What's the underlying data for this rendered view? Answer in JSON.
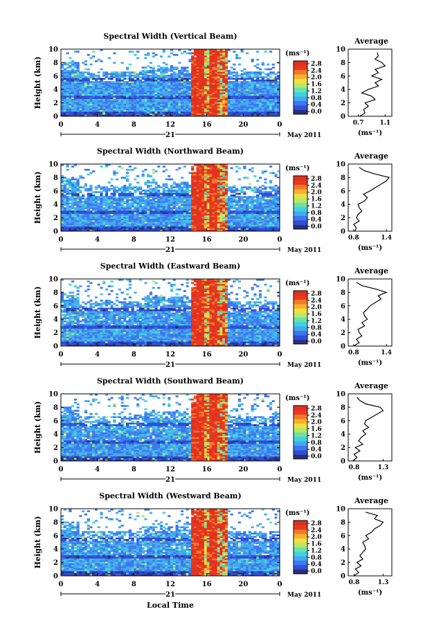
{
  "colorbar_unit": "(ms⁻¹)",
  "colorbar_ticks": [
    "2.8",
    "2.4",
    "2.0",
    "1.6",
    "1.2",
    "0.8",
    "0.4",
    "0.0"
  ],
  "colormap": [
    "#2b2f7a",
    "#2f4fd8",
    "#3f78ee",
    "#45a8f0",
    "#3fd3e0",
    "#6fe0a8",
    "#b8e86a",
    "#f0e040",
    "#f8b030",
    "#f07a28",
    "#e83a22",
    "#e03020"
  ],
  "average_title": "Average",
  "average_xlabel": "(ms⁻¹)",
  "date_label": "May 2011",
  "day_label": "21",
  "xlabel_bottom": "Local Time",
  "chart_data": [
    {
      "type": "heatmap",
      "title": "Spectral Width (Vertical Beam)",
      "ylabel": "Height (km)",
      "x_ticks": [
        "0",
        "4",
        "8",
        "12",
        "16",
        "20",
        "0"
      ],
      "y_ticks": [
        "0",
        "2",
        "4",
        "6",
        "8",
        "10"
      ],
      "xlim": [
        0,
        24
      ],
      "ylim": [
        0,
        10
      ],
      "colorbar_range": [
        0.0,
        2.8
      ],
      "average_profile": {
        "xticks": [
          "0.7",
          "1.1"
        ],
        "xlim": [
          0.55,
          1.2
        ],
        "height": [
          0,
          0.5,
          1,
          1.5,
          2,
          2.5,
          3,
          3.5,
          4,
          4.5,
          5,
          5.5,
          6,
          6.5,
          7,
          7.5,
          8,
          8.5,
          9,
          9.5
        ],
        "value": [
          0.72,
          0.8,
          0.78,
          0.85,
          0.8,
          0.95,
          0.9,
          0.75,
          0.85,
          1.0,
          0.95,
          1.05,
          0.9,
          1.0,
          0.95,
          1.1,
          1.05,
          0.95,
          1.0,
          0.98
        ]
      }
    },
    {
      "type": "heatmap",
      "title": "Spectral Width (Northward Beam)",
      "ylabel": "Height (km)",
      "x_ticks": [
        "0",
        "4",
        "8",
        "12",
        "16",
        "20",
        "0"
      ],
      "y_ticks": [
        "0",
        "2",
        "4",
        "6",
        "8",
        "10"
      ],
      "xlim": [
        0,
        24
      ],
      "ylim": [
        0,
        10
      ],
      "colorbar_range": [
        0.0,
        2.8
      ],
      "average_profile": {
        "xticks": [
          "0.8",
          "1.4"
        ],
        "xlim": [
          0.7,
          1.5
        ],
        "height": [
          0,
          0.5,
          1,
          1.5,
          2,
          2.5,
          3,
          3.5,
          4,
          4.5,
          5,
          5.5,
          6,
          6.5,
          7,
          7.5,
          8,
          8.5,
          9,
          9.5
        ],
        "value": [
          0.82,
          0.85,
          0.8,
          0.9,
          0.85,
          0.88,
          0.95,
          0.9,
          0.88,
          1.0,
          1.05,
          0.98,
          1.1,
          1.2,
          1.3,
          1.4,
          1.45,
          1.2,
          1.0,
          0.9
        ]
      }
    },
    {
      "type": "heatmap",
      "title": "Spectral Width (Eastward Beam)",
      "ylabel": "Height (km)",
      "x_ticks": [
        "0",
        "4",
        "8",
        "12",
        "16",
        "20",
        "0"
      ],
      "y_ticks": [
        "0",
        "2",
        "4",
        "6",
        "8",
        "10"
      ],
      "xlim": [
        0,
        24
      ],
      "ylim": [
        0,
        10
      ],
      "colorbar_range": [
        0.0,
        2.8
      ],
      "average_profile": {
        "xticks": [
          "0.8",
          "1.4"
        ],
        "xlim": [
          0.7,
          1.5
        ],
        "height": [
          0,
          0.5,
          1,
          1.5,
          2,
          2.5,
          3,
          3.5,
          4,
          4.5,
          5,
          5.5,
          6,
          6.5,
          7,
          7.5,
          8,
          8.5,
          9,
          9.5
        ],
        "value": [
          0.8,
          0.9,
          0.85,
          0.95,
          0.9,
          0.88,
          1.0,
          0.95,
          1.05,
          1.0,
          0.98,
          1.05,
          1.1,
          1.2,
          1.3,
          1.25,
          1.4,
          1.2,
          0.95,
          0.85
        ]
      }
    },
    {
      "type": "heatmap",
      "title": "Spectral Width (Southward Beam)",
      "ylabel": "Height (km)",
      "x_ticks": [
        "0",
        "4",
        "8",
        "12",
        "16",
        "20",
        "0"
      ],
      "y_ticks": [
        "0",
        "2",
        "4",
        "6",
        "8",
        "10"
      ],
      "xlim": [
        0,
        24
      ],
      "ylim": [
        0,
        10
      ],
      "colorbar_range": [
        0.0,
        2.8
      ],
      "average_profile": {
        "xticks": [
          "0.8",
          "1.3"
        ],
        "xlim": [
          0.7,
          1.45
        ],
        "height": [
          0,
          0.5,
          1,
          1.5,
          2,
          2.5,
          3,
          3.5,
          4,
          4.5,
          5,
          5.5,
          6,
          6.5,
          7,
          7.5,
          8,
          8.5,
          9,
          9.5
        ],
        "value": [
          0.78,
          0.85,
          0.8,
          0.9,
          0.82,
          0.95,
          0.88,
          0.92,
          1.0,
          0.95,
          1.05,
          0.98,
          1.0,
          1.1,
          1.2,
          1.3,
          1.25,
          1.0,
          0.9,
          0.85
        ]
      }
    },
    {
      "type": "heatmap",
      "title": "Spectral Width (Westward Beam)",
      "ylabel": "Height (km)",
      "x_ticks": [
        "0",
        "4",
        "8",
        "12",
        "16",
        "20",
        "0"
      ],
      "y_ticks": [
        "0",
        "2",
        "4",
        "6",
        "8",
        "10"
      ],
      "xlim": [
        0,
        24
      ],
      "ylim": [
        0,
        10
      ],
      "colorbar_range": [
        0.0,
        2.8
      ],
      "average_profile": {
        "xticks": [
          "0.8",
          "1.3"
        ],
        "xlim": [
          0.7,
          1.45
        ],
        "height": [
          0,
          0.5,
          1,
          1.5,
          2,
          2.5,
          3,
          3.5,
          4,
          4.5,
          5,
          5.5,
          6,
          6.5,
          7,
          7.5,
          8,
          8.5,
          9,
          9.5
        ],
        "value": [
          0.8,
          0.88,
          0.82,
          0.92,
          0.85,
          0.95,
          0.9,
          0.95,
          1.0,
          0.98,
          0.95,
          1.05,
          1.0,
          1.1,
          1.15,
          1.25,
          1.3,
          1.15,
          1.2,
          1.0
        ]
      }
    }
  ]
}
